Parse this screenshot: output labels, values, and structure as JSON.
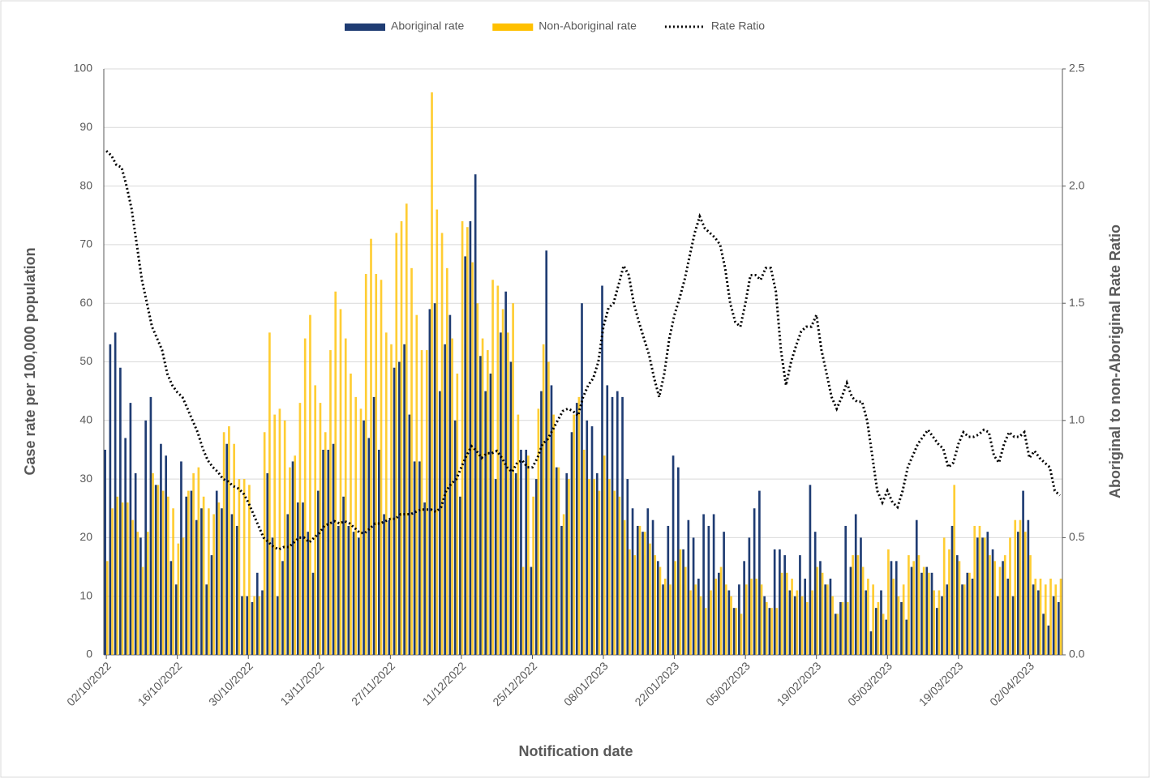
{
  "chart_data": {
    "type": "bar",
    "categories": [
      "02/10/2022",
      null,
      null,
      null,
      null,
      null,
      null,
      null,
      null,
      null,
      null,
      null,
      null,
      null,
      "16/10/2022",
      null,
      null,
      null,
      null,
      null,
      null,
      null,
      null,
      null,
      null,
      null,
      null,
      null,
      "30/10/2022",
      null,
      null,
      null,
      null,
      null,
      null,
      null,
      null,
      null,
      null,
      null,
      null,
      null,
      "13/11/2022",
      null,
      null,
      null,
      null,
      null,
      null,
      null,
      null,
      null,
      null,
      null,
      null,
      null,
      "27/11/2022",
      null,
      null,
      null,
      null,
      null,
      null,
      null,
      null,
      null,
      null,
      null,
      null,
      null,
      "11/12/2022",
      null,
      null,
      null,
      null,
      null,
      null,
      null,
      null,
      null,
      null,
      null,
      null,
      null,
      "25/12/2022",
      null,
      null,
      null,
      null,
      null,
      null,
      null,
      null,
      null,
      null,
      null,
      null,
      null,
      "08/01/2023",
      null,
      null,
      null,
      null,
      null,
      null,
      null,
      null,
      null,
      null,
      null,
      null,
      null,
      "22/01/2023",
      null,
      null,
      null,
      null,
      null,
      null,
      null,
      null,
      null,
      null,
      null,
      null,
      null,
      "05/02/2023",
      null,
      null,
      null,
      null,
      null,
      null,
      null,
      null,
      null,
      null,
      null,
      null,
      null,
      "19/02/2023",
      null,
      null,
      null,
      null,
      null,
      null,
      null,
      null,
      null,
      null,
      null,
      null,
      null,
      "05/03/2023",
      null,
      null,
      null,
      null,
      null,
      null,
      null,
      null,
      null,
      null,
      null,
      null,
      null,
      "19/03/2023",
      null,
      null,
      null,
      null,
      null,
      null,
      null,
      null,
      null,
      null,
      null,
      null,
      null,
      "02/04/2023",
      null,
      null,
      null,
      null,
      null,
      null
    ],
    "series": [
      {
        "name": "Aboriginal rate",
        "color": "#1f3c73",
        "type": "bar",
        "values": [
          35,
          53,
          55,
          49,
          37,
          43,
          31,
          20,
          40,
          44,
          29,
          36,
          34,
          16,
          12,
          33,
          27,
          28,
          23,
          25,
          12,
          17,
          28,
          25,
          36,
          24,
          22,
          10,
          10,
          9,
          14,
          11,
          31,
          20,
          10,
          16,
          24,
          33,
          26,
          26,
          21,
          14,
          28,
          35,
          35,
          36,
          22,
          27,
          22,
          21,
          20,
          40,
          37,
          44,
          35,
          24,
          23,
          49,
          50,
          53,
          41,
          33,
          33,
          26,
          59,
          60,
          45,
          53,
          58,
          40,
          27,
          68,
          74,
          82,
          51,
          45,
          48,
          30,
          55,
          62,
          50,
          31,
          35,
          35,
          15,
          30,
          45,
          69,
          46,
          32,
          22,
          31,
          38,
          43,
          60,
          40,
          39,
          31,
          63,
          46,
          44,
          45,
          44,
          30,
          25,
          22,
          21,
          25,
          23,
          16,
          12,
          22,
          34,
          32,
          18,
          23,
          20,
          13,
          24,
          22,
          24,
          14,
          21,
          11,
          8,
          12,
          16,
          20,
          25,
          28,
          10,
          8,
          18,
          18,
          17,
          11,
          10,
          17,
          13,
          29,
          21,
          16,
          12,
          13,
          7,
          9,
          22,
          15,
          24,
          20,
          11,
          4,
          8,
          11,
          6,
          16,
          16,
          9,
          6,
          15,
          23,
          14,
          15,
          14,
          8,
          10,
          12,
          22,
          17,
          12,
          14,
          13,
          20,
          20,
          21,
          18,
          10,
          16,
          13,
          10,
          21,
          28,
          23,
          12,
          11,
          7,
          5,
          10,
          9
        ]
      },
      {
        "name": "Non-Aboriginal rate",
        "color": "#ffc000",
        "type": "bar",
        "values": [
          16,
          25,
          27,
          26,
          26,
          23,
          21,
          15,
          21,
          31,
          29,
          28,
          27,
          25,
          19,
          20,
          28,
          31,
          32,
          27,
          25,
          24,
          26,
          38,
          39,
          36,
          30,
          30,
          29,
          10,
          10,
          38,
          55,
          41,
          42,
          40,
          32,
          34,
          43,
          54,
          58,
          46,
          43,
          38,
          52,
          62,
          59,
          54,
          48,
          44,
          42,
          65,
          71,
          65,
          64,
          55,
          53,
          72,
          74,
          77,
          66,
          58,
          52,
          52,
          96,
          76,
          72,
          66,
          54,
          48,
          74,
          73,
          67,
          60,
          54,
          52,
          64,
          63,
          59,
          55,
          60,
          41,
          15,
          34,
          27,
          42,
          53,
          50,
          41,
          32,
          24,
          30,
          41,
          44,
          35,
          30,
          30,
          28,
          34,
          30,
          28,
          27,
          23,
          18,
          17,
          22,
          21,
          19,
          17,
          15,
          13,
          12,
          16,
          18,
          15,
          11,
          12,
          10,
          8,
          11,
          13,
          15,
          12,
          10,
          8,
          7,
          12,
          13,
          13,
          12,
          9,
          8,
          8,
          14,
          14,
          13,
          11,
          10,
          9,
          11,
          15,
          14,
          12,
          10,
          7,
          9,
          9,
          17,
          17,
          15,
          13,
          12,
          9,
          7,
          18,
          13,
          10,
          12,
          17,
          16,
          17,
          15,
          14,
          11,
          11,
          20,
          18,
          29,
          16,
          12,
          14,
          22,
          22,
          20,
          17,
          16,
          15,
          17,
          20,
          23,
          23,
          21,
          17,
          13,
          13,
          12,
          13,
          12,
          13
        ]
      },
      {
        "name": "Rate Ratio",
        "color": "#000000",
        "type": "line",
        "axis": "y2",
        "values": [
          2.15,
          2.13,
          2.09,
          2.08,
          2.0,
          1.9,
          1.75,
          1.6,
          1.5,
          1.4,
          1.35,
          1.3,
          1.2,
          1.15,
          1.12,
          1.1,
          1.05,
          1.0,
          0.95,
          0.88,
          0.83,
          0.8,
          0.78,
          0.75,
          0.74,
          0.72,
          0.71,
          0.69,
          0.65,
          0.6,
          0.55,
          0.5,
          0.48,
          0.46,
          0.45,
          0.46,
          0.46,
          0.48,
          0.5,
          0.5,
          0.48,
          0.5,
          0.52,
          0.55,
          0.56,
          0.57,
          0.56,
          0.57,
          0.56,
          0.54,
          0.52,
          0.52,
          0.54,
          0.56,
          0.56,
          0.57,
          0.58,
          0.58,
          0.6,
          0.6,
          0.6,
          0.61,
          0.62,
          0.62,
          0.62,
          0.61,
          0.63,
          0.7,
          0.73,
          0.75,
          0.8,
          0.85,
          0.89,
          0.87,
          0.84,
          0.86,
          0.86,
          0.87,
          0.84,
          0.8,
          0.78,
          0.82,
          0.83,
          0.8,
          0.8,
          0.84,
          0.9,
          0.92,
          0.96,
          1.0,
          1.04,
          1.05,
          1.04,
          1.02,
          1.1,
          1.15,
          1.18,
          1.25,
          1.4,
          1.48,
          1.5,
          1.58,
          1.66,
          1.62,
          1.5,
          1.42,
          1.35,
          1.28,
          1.18,
          1.1,
          1.2,
          1.35,
          1.45,
          1.52,
          1.6,
          1.7,
          1.8,
          1.87,
          1.82,
          1.8,
          1.78,
          1.75,
          1.65,
          1.5,
          1.42,
          1.4,
          1.5,
          1.62,
          1.62,
          1.6,
          1.65,
          1.65,
          1.55,
          1.3,
          1.15,
          1.25,
          1.32,
          1.38,
          1.4,
          1.4,
          1.45,
          1.3,
          1.2,
          1.1,
          1.05,
          1.1,
          1.16,
          1.1,
          1.08,
          1.08,
          1.0,
          0.85,
          0.7,
          0.65,
          0.7,
          0.65,
          0.63,
          0.7,
          0.8,
          0.85,
          0.9,
          0.93,
          0.96,
          0.93,
          0.9,
          0.88,
          0.8,
          0.82,
          0.9,
          0.95,
          0.93,
          0.93,
          0.94,
          0.96,
          0.95,
          0.85,
          0.82,
          0.9,
          0.95,
          0.93,
          0.93,
          0.95,
          0.84,
          0.87,
          0.84,
          0.82,
          0.8,
          0.7,
          0.68
        ]
      }
    ],
    "ylim": [
      0,
      100
    ],
    "yticks": [
      0,
      10,
      20,
      30,
      40,
      50,
      60,
      70,
      80,
      90,
      100
    ],
    "y2lim": [
      0,
      2.5
    ],
    "y2ticks": [
      {
        "value": 0,
        "label": "0.0"
      },
      0.5,
      {
        "value": 1,
        "label": "1.0"
      },
      1.5,
      {
        "value": 2,
        "label": "2.0"
      },
      2.5
    ],
    "xlabel": "Notification date",
    "ylabel": "Case rate per 100,000 population",
    "y2label": "Aboriginal to non-Aboriginal Rate Ratio",
    "grid": true,
    "legend": "top"
  }
}
